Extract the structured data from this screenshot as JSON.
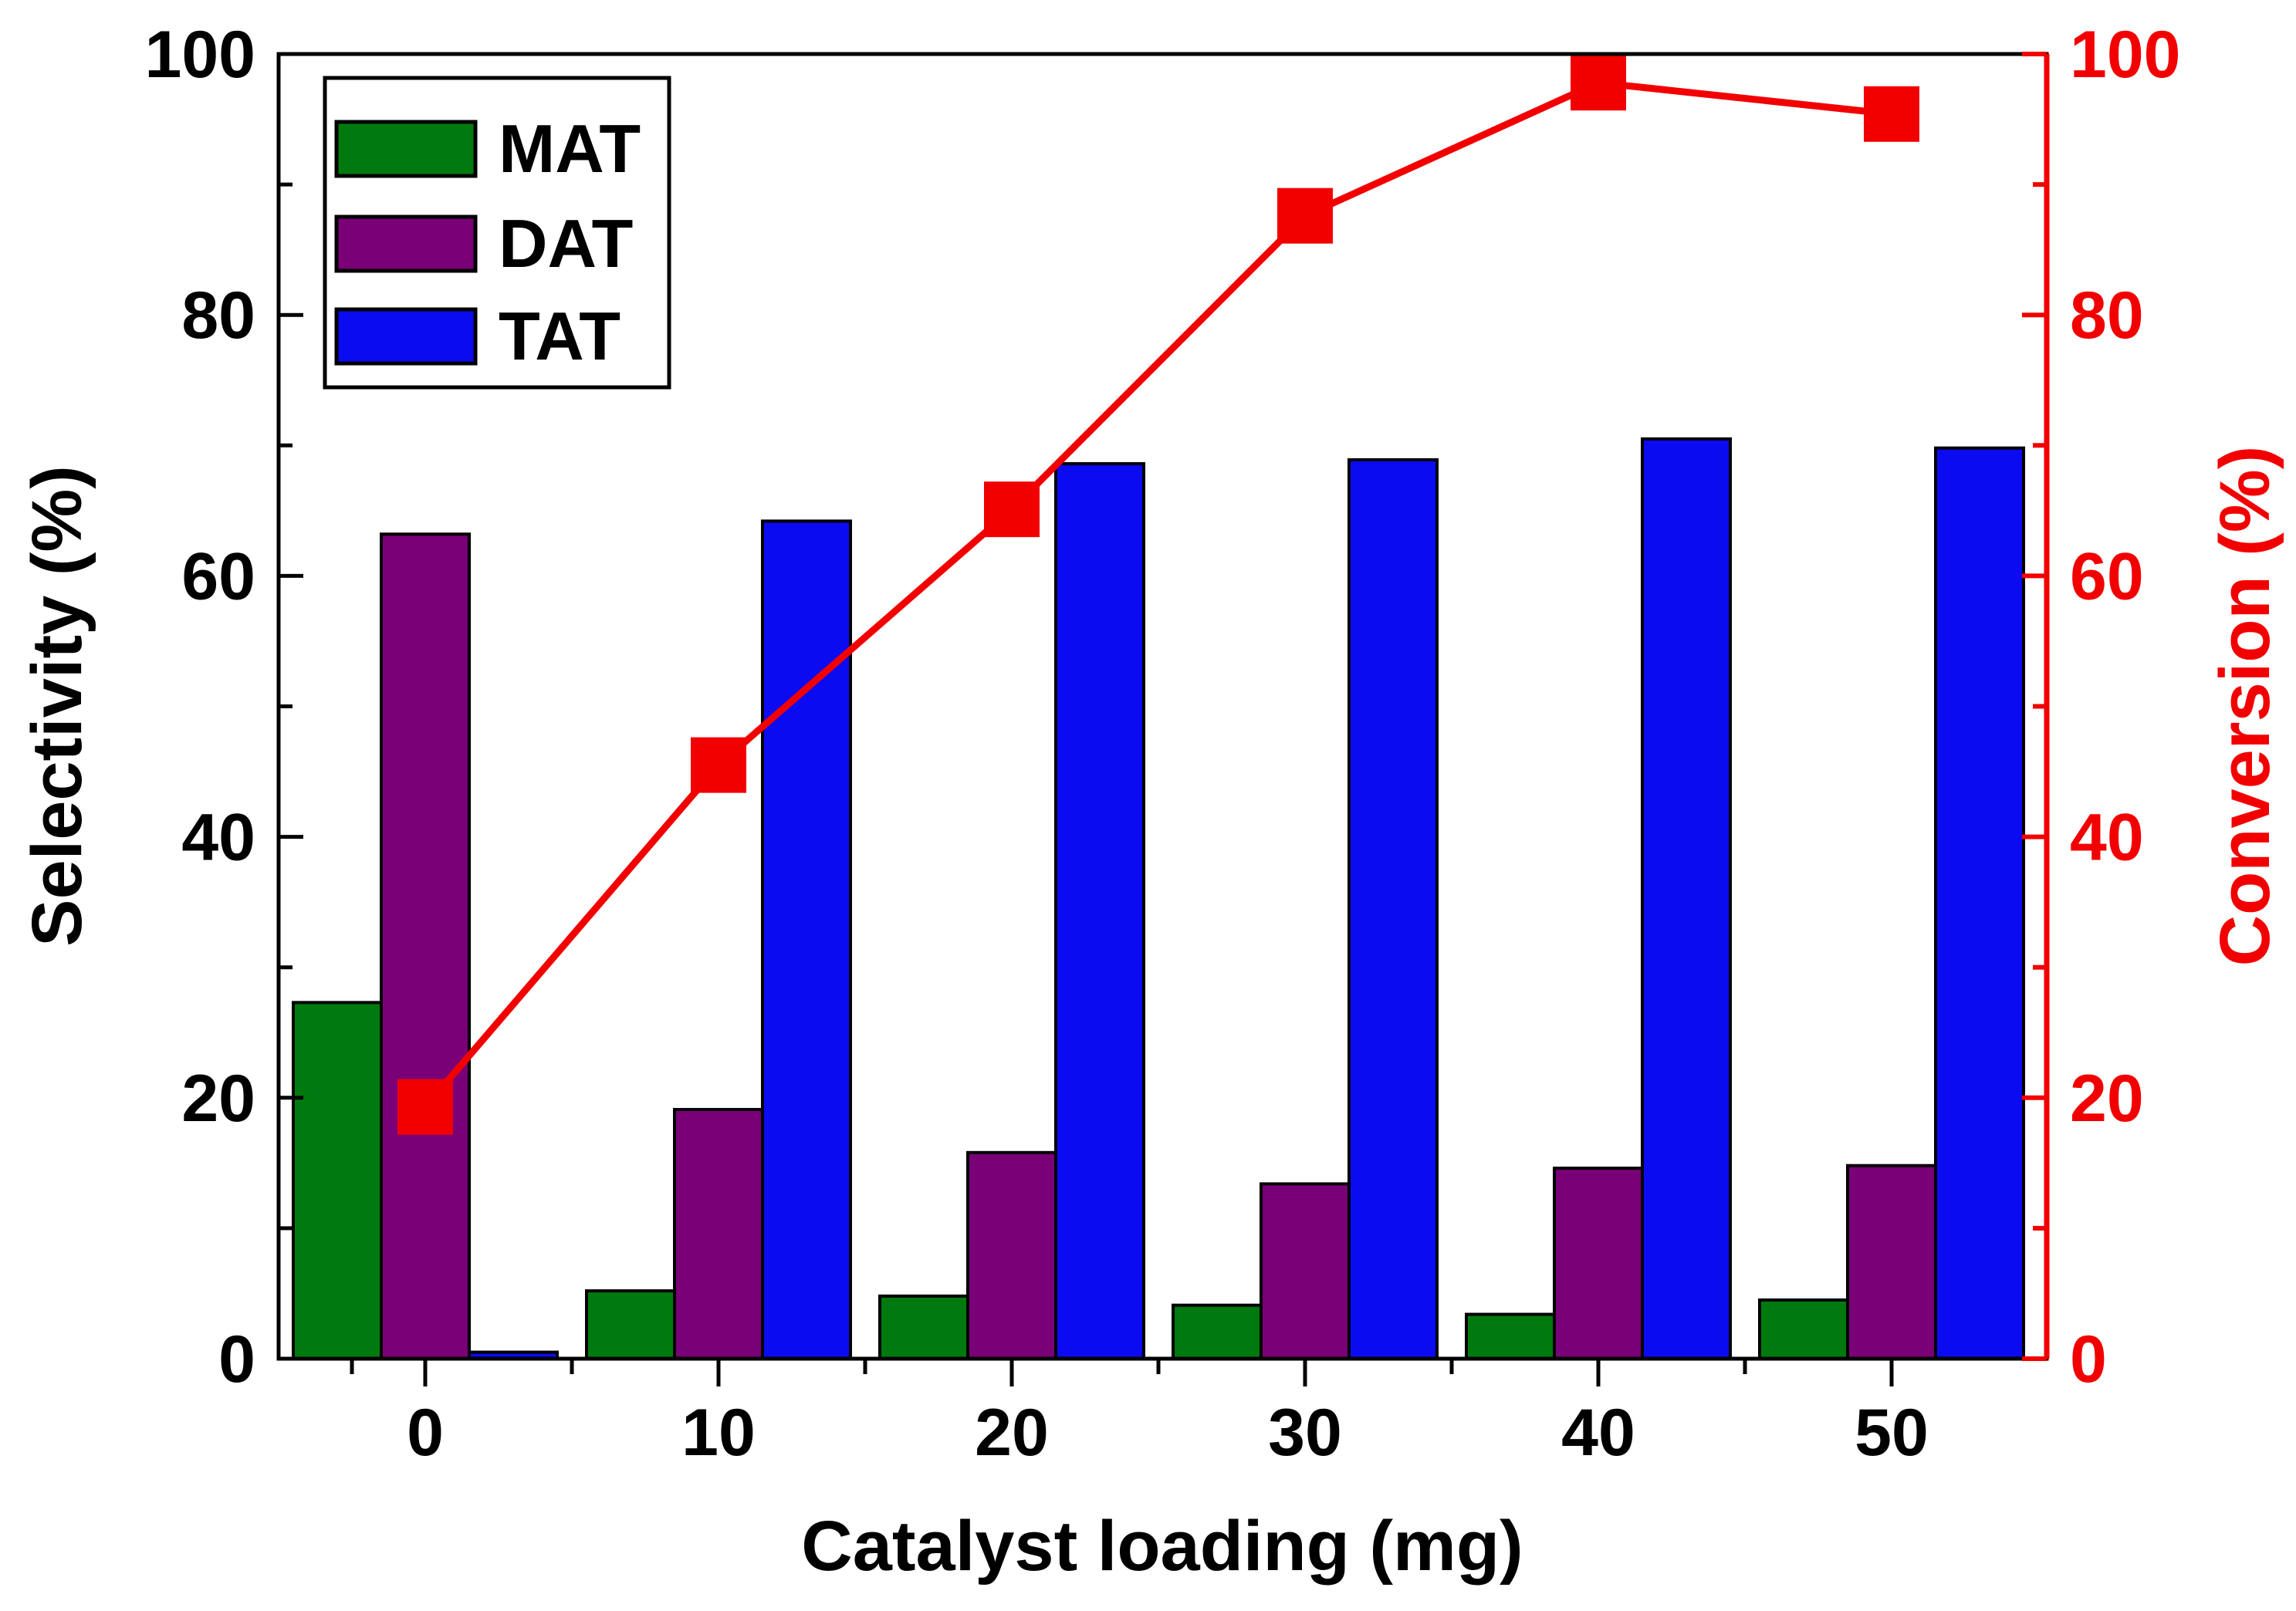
{
  "chart_data": {
    "type": "bar+line",
    "categories": [
      "0",
      "10",
      "20",
      "30",
      "40",
      "50"
    ],
    "series": [
      {
        "name": "MAT",
        "type": "bar",
        "axis": "left",
        "color": "#007a0e",
        "values": [
          27.3,
          5.2,
          4.8,
          4.1,
          3.4,
          4.5
        ]
      },
      {
        "name": "DAT",
        "type": "bar",
        "axis": "left",
        "color": "#7a0077",
        "values": [
          63.2,
          19.1,
          15.8,
          13.4,
          14.6,
          14.8
        ]
      },
      {
        "name": "TAT",
        "type": "bar",
        "axis": "left",
        "color": "#0b0bf2",
        "values": [
          0.5,
          64.2,
          68.6,
          68.9,
          70.5,
          69.8
        ]
      },
      {
        "name": "Conversion",
        "type": "line",
        "axis": "right",
        "color": "#f20000",
        "values": [
          19.3,
          45.5,
          65.1,
          87.6,
          97.8,
          95.4
        ]
      }
    ],
    "xlabel": "Catalyst loading (mg)",
    "ylabel": "Selectivity (%)",
    "y2label": "Conversion (%)",
    "ylim": [
      0,
      100
    ],
    "y2lim": [
      0,
      100
    ],
    "yticks": [
      "0",
      "20",
      "40",
      "60",
      "80",
      "100"
    ],
    "y2ticks": [
      "0",
      "20",
      "40",
      "60",
      "80",
      "100"
    ],
    "legend": {
      "position": "top-left",
      "entries": [
        "MAT",
        "DAT",
        "TAT"
      ]
    },
    "grid": false
  }
}
